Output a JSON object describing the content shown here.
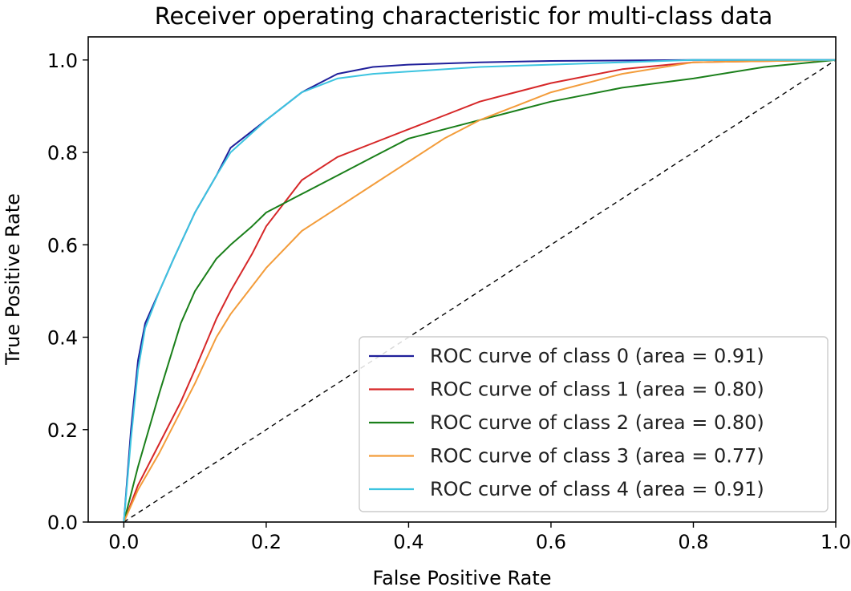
{
  "chart_data": {
    "type": "line",
    "title": "Receiver operating characteristic for multi-class data",
    "xlabel": "False Positive Rate",
    "ylabel": "True Positive Rate",
    "xlim": [
      -0.05,
      1.0
    ],
    "ylim": [
      0.0,
      1.05
    ],
    "xticks": [
      "0.0",
      "0.2",
      "0.4",
      "0.6",
      "0.8",
      "1.0"
    ],
    "yticks": [
      "0.0",
      "0.2",
      "0.4",
      "0.6",
      "0.8",
      "1.0"
    ],
    "grid": false,
    "legend_position": "lower-right",
    "series": [
      {
        "name": "ROC curve of class 0 (area = 0.91)",
        "color": "#1f1f9a",
        "points": [
          [
            0.0,
            0.0
          ],
          [
            0.01,
            0.2
          ],
          [
            0.02,
            0.35
          ],
          [
            0.03,
            0.43
          ],
          [
            0.05,
            0.5
          ],
          [
            0.07,
            0.57
          ],
          [
            0.1,
            0.67
          ],
          [
            0.13,
            0.75
          ],
          [
            0.15,
            0.81
          ],
          [
            0.2,
            0.87
          ],
          [
            0.25,
            0.93
          ],
          [
            0.3,
            0.97
          ],
          [
            0.35,
            0.985
          ],
          [
            0.4,
            0.99
          ],
          [
            0.5,
            0.995
          ],
          [
            0.6,
            0.998
          ],
          [
            0.8,
            1.0
          ],
          [
            1.0,
            1.0
          ]
        ]
      },
      {
        "name": "ROC curve of class 1 (area = 0.80)",
        "color": "#d62728",
        "points": [
          [
            0.0,
            0.0
          ],
          [
            0.02,
            0.08
          ],
          [
            0.05,
            0.17
          ],
          [
            0.08,
            0.26
          ],
          [
            0.1,
            0.33
          ],
          [
            0.13,
            0.44
          ],
          [
            0.15,
            0.5
          ],
          [
            0.18,
            0.58
          ],
          [
            0.2,
            0.64
          ],
          [
            0.25,
            0.74
          ],
          [
            0.3,
            0.79
          ],
          [
            0.35,
            0.82
          ],
          [
            0.4,
            0.85
          ],
          [
            0.45,
            0.88
          ],
          [
            0.5,
            0.91
          ],
          [
            0.55,
            0.93
          ],
          [
            0.6,
            0.95
          ],
          [
            0.7,
            0.98
          ],
          [
            0.8,
            0.995
          ],
          [
            1.0,
            1.0
          ]
        ]
      },
      {
        "name": "ROC curve of class 2 (area = 0.80)",
        "color": "#1a7f1a",
        "points": [
          [
            0.0,
            0.0
          ],
          [
            0.02,
            0.12
          ],
          [
            0.05,
            0.28
          ],
          [
            0.08,
            0.43
          ],
          [
            0.1,
            0.5
          ],
          [
            0.13,
            0.57
          ],
          [
            0.15,
            0.6
          ],
          [
            0.18,
            0.64
          ],
          [
            0.2,
            0.67
          ],
          [
            0.25,
            0.71
          ],
          [
            0.3,
            0.75
          ],
          [
            0.35,
            0.79
          ],
          [
            0.4,
            0.83
          ],
          [
            0.5,
            0.87
          ],
          [
            0.6,
            0.91
          ],
          [
            0.7,
            0.94
          ],
          [
            0.8,
            0.96
          ],
          [
            0.9,
            0.985
          ],
          [
            1.0,
            1.0
          ]
        ]
      },
      {
        "name": "ROC curve of class 3 (area = 0.77)",
        "color": "#f39c3a",
        "points": [
          [
            0.0,
            0.0
          ],
          [
            0.02,
            0.07
          ],
          [
            0.05,
            0.15
          ],
          [
            0.08,
            0.24
          ],
          [
            0.1,
            0.3
          ],
          [
            0.13,
            0.4
          ],
          [
            0.15,
            0.45
          ],
          [
            0.18,
            0.51
          ],
          [
            0.2,
            0.55
          ],
          [
            0.25,
            0.63
          ],
          [
            0.3,
            0.68
          ],
          [
            0.35,
            0.73
          ],
          [
            0.4,
            0.78
          ],
          [
            0.45,
            0.83
          ],
          [
            0.5,
            0.87
          ],
          [
            0.55,
            0.9
          ],
          [
            0.6,
            0.93
          ],
          [
            0.7,
            0.97
          ],
          [
            0.8,
            0.995
          ],
          [
            1.0,
            1.0
          ]
        ]
      },
      {
        "name": "ROC curve of class 4 (area = 0.91)",
        "color": "#3cc4e0",
        "points": [
          [
            0.0,
            0.0
          ],
          [
            0.01,
            0.18
          ],
          [
            0.02,
            0.33
          ],
          [
            0.03,
            0.42
          ],
          [
            0.05,
            0.5
          ],
          [
            0.07,
            0.57
          ],
          [
            0.1,
            0.67
          ],
          [
            0.13,
            0.75
          ],
          [
            0.15,
            0.8
          ],
          [
            0.2,
            0.87
          ],
          [
            0.25,
            0.93
          ],
          [
            0.3,
            0.96
          ],
          [
            0.35,
            0.97
          ],
          [
            0.4,
            0.975
          ],
          [
            0.5,
            0.985
          ],
          [
            0.6,
            0.99
          ],
          [
            0.7,
            0.995
          ],
          [
            0.8,
            1.0
          ],
          [
            1.0,
            1.0
          ]
        ]
      }
    ],
    "reference_line": {
      "color": "#000000",
      "style": "dashed",
      "points": [
        [
          0.0,
          0.0
        ],
        [
          1.0,
          1.0
        ]
      ]
    }
  }
}
